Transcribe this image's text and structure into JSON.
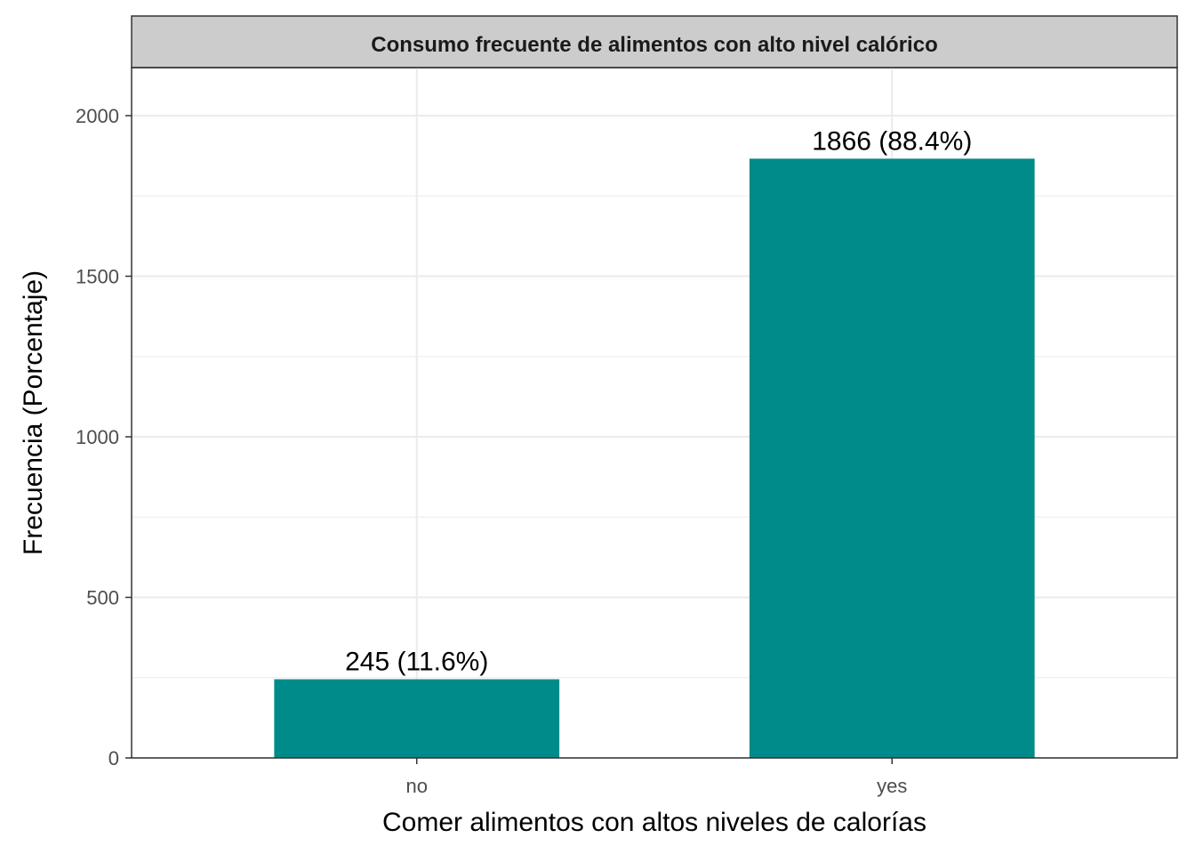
{
  "chart_data": {
    "type": "bar",
    "title": "Consumo frecuente de alimentos con alto nivel calórico",
    "xlabel": "Comer alimentos con altos niveles de calorías",
    "ylabel": "Frecuencia (Porcentaje)",
    "categories": [
      "no",
      "yes"
    ],
    "values": [
      245,
      1866
    ],
    "data_labels": [
      "245 (11.6%)",
      "1866 (88.4%)"
    ],
    "ylim": [
      0,
      2150
    ],
    "yticks": [
      0,
      500,
      1000,
      1500,
      2000
    ],
    "ytick_labels": [
      "0",
      "500",
      "1000",
      "1500",
      "2000"
    ],
    "grid": true,
    "legend": "none",
    "colors": {
      "bar": "#008B8B",
      "strip_background": "#CCCCCC",
      "grid": "#EBEBEB",
      "panel_border": "#333333"
    }
  }
}
